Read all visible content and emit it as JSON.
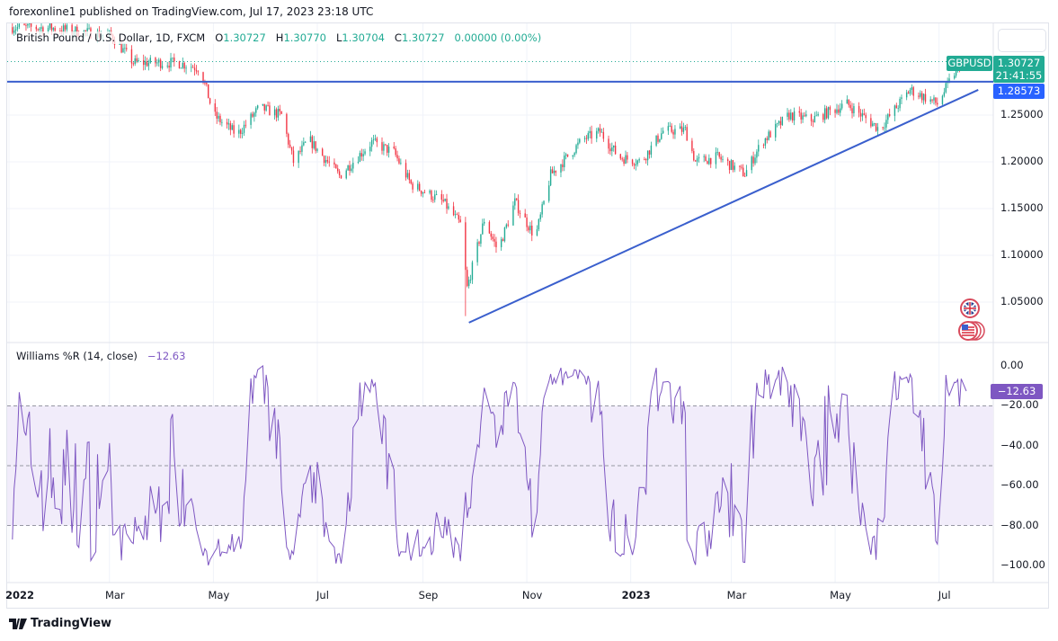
{
  "header": {
    "publish_text": "forexonline1 published on TradingView.com, Jul 17, 2023 23:18 UTC"
  },
  "legend": {
    "symbol_desc": "British Pound / U.S. Dollar, 1D, FXCM",
    "open_label": "O",
    "open": "1.30727",
    "high_label": "H",
    "high": "1.30770",
    "low_label": "L",
    "low": "1.30704",
    "close_label": "C",
    "close": "1.30727",
    "change": "0.00000 (0.00%)"
  },
  "price_tags": {
    "symbol": "GBPUSD",
    "last_price": "1.30727",
    "countdown": "21:41:55",
    "hline_price": "1.28573"
  },
  "indicator": {
    "name": "Williams %R (14, close)",
    "value": "−12.63",
    "tag": "−12.63"
  },
  "footer": {
    "logo_text": "TradingView"
  },
  "colors": {
    "up": "#22ab94",
    "down": "#f23645",
    "trendline": "#3a5fcd",
    "williams": "#7e57c2",
    "band_fill": "#f1ecfa"
  },
  "icons": [
    "uk-flag-icon",
    "us-flag-icon",
    "tradingview-logo-icon"
  ],
  "chart_data": [
    {
      "type": "candlestick",
      "symbol": "GBPUSD",
      "interval": "1D",
      "x_range": [
        "2022-01-01",
        "2023-07-17"
      ],
      "x_tick_labels": [
        {
          "date": "2022-01-01",
          "label": "2022",
          "bold": true
        },
        {
          "date": "2022-03-01",
          "label": "Mar"
        },
        {
          "date": "2022-05-01",
          "label": "May"
        },
        {
          "date": "2022-07-01",
          "label": "Jul"
        },
        {
          "date": "2022-09-01",
          "label": "Sep"
        },
        {
          "date": "2022-11-01",
          "label": "Nov"
        },
        {
          "date": "2023-01-01",
          "label": "2023",
          "bold": true
        },
        {
          "date": "2023-03-01",
          "label": "Mar"
        },
        {
          "date": "2023-05-01",
          "label": "May"
        },
        {
          "date": "2023-07-01",
          "label": "Jul"
        }
      ],
      "y_tick_labels": [
        "1.25000",
        "1.20000",
        "1.15000",
        "1.10000",
        "1.05000"
      ],
      "y_ticks": [
        1.25,
        1.2,
        1.15,
        1.1,
        1.05
      ],
      "y_range": [
        1.018,
        1.348
      ],
      "grid": true,
      "approx_close_path": [
        [
          "2022-01-01",
          1.344
        ],
        [
          "2022-01-27",
          1.343
        ],
        [
          "2022-03-02",
          1.335
        ],
        [
          "2022-03-15",
          1.306
        ],
        [
          "2022-04-10",
          1.306
        ],
        [
          "2022-04-23",
          1.3
        ],
        [
          "2022-04-27",
          1.277
        ],
        [
          "2022-05-01",
          1.25
        ],
        [
          "2022-05-15",
          1.229
        ],
        [
          "2022-05-28",
          1.258
        ],
        [
          "2022-06-10",
          1.25
        ],
        [
          "2022-06-17",
          1.2
        ],
        [
          "2022-06-26",
          1.224
        ],
        [
          "2022-07-14",
          1.185
        ],
        [
          "2022-08-02",
          1.221
        ],
        [
          "2022-08-15",
          1.21
        ],
        [
          "2022-08-25",
          1.176
        ],
        [
          "2022-09-13",
          1.157
        ],
        [
          "2022-09-23",
          1.133
        ],
        [
          "2022-09-27",
          1.065
        ],
        [
          "2022-10-07",
          1.138
        ],
        [
          "2022-10-15",
          1.105
        ],
        [
          "2022-10-25",
          1.157
        ],
        [
          "2022-11-06",
          1.119
        ],
        [
          "2022-11-15",
          1.186
        ],
        [
          "2022-12-04",
          1.224
        ],
        [
          "2022-12-14",
          1.232
        ],
        [
          "2022-12-25",
          1.205
        ],
        [
          "2023-01-07",
          1.2
        ],
        [
          "2023-01-20",
          1.233
        ],
        [
          "2023-02-02",
          1.234
        ],
        [
          "2023-02-08",
          1.2
        ],
        [
          "2023-02-21",
          1.205
        ],
        [
          "2023-03-09",
          1.187
        ],
        [
          "2023-03-19",
          1.221
        ],
        [
          "2023-04-04",
          1.25
        ],
        [
          "2023-04-17",
          1.245
        ],
        [
          "2023-05-08",
          1.262
        ],
        [
          "2023-05-27",
          1.235
        ],
        [
          "2023-06-14",
          1.277
        ],
        [
          "2023-06-30",
          1.262
        ],
        [
          "2023-07-13",
          1.305
        ],
        [
          "2023-07-17",
          1.30727
        ]
      ],
      "drawings": [
        {
          "type": "horizontal_line",
          "price": 1.28573
        },
        {
          "type": "trend_line",
          "points": [
            [
              "2022-09-28",
              1.028
            ],
            [
              "2023-07-24",
              1.277
            ]
          ]
        }
      ]
    },
    {
      "type": "line",
      "name": "Williams %R (14, close)",
      "y_range": [
        -100,
        0
      ],
      "y_tick_labels": [
        "0.00",
        "−20.00",
        "−40.00",
        "−60.00",
        "−80.00",
        "−100.00"
      ],
      "y_ticks": [
        0,
        -20,
        -40,
        -60,
        -80,
        -100
      ],
      "bands": {
        "upper": -20,
        "middle": -50,
        "lower": -80
      },
      "last_value": -12.63
    }
  ]
}
